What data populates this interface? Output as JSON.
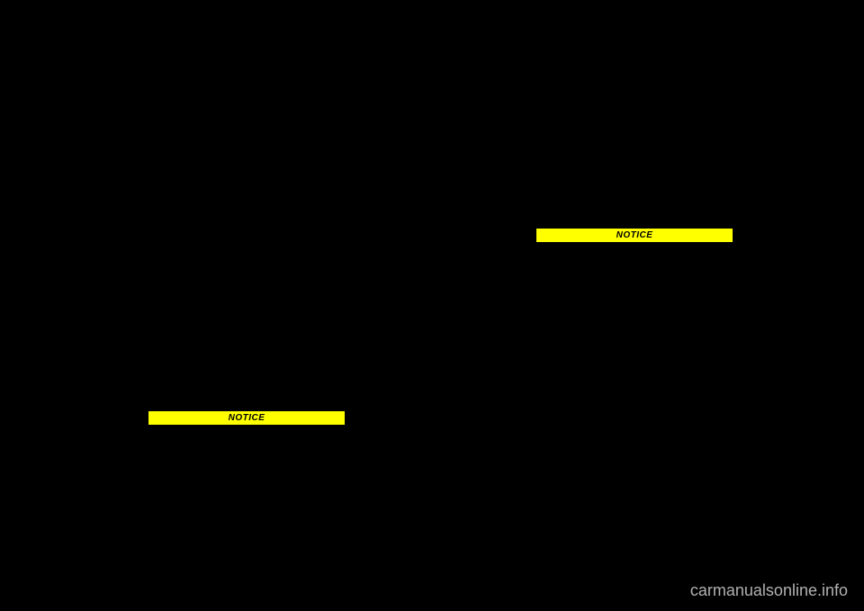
{
  "notice_left": {
    "label": "NOTICE"
  },
  "notice_right": {
    "label": "NOTICE"
  },
  "watermark": {
    "text": "carmanualsonline.info"
  },
  "colors": {
    "background": "#000000",
    "notice_bg": "#ffff00",
    "notice_text": "#000000",
    "watermark_text": "#d0d0d0"
  }
}
